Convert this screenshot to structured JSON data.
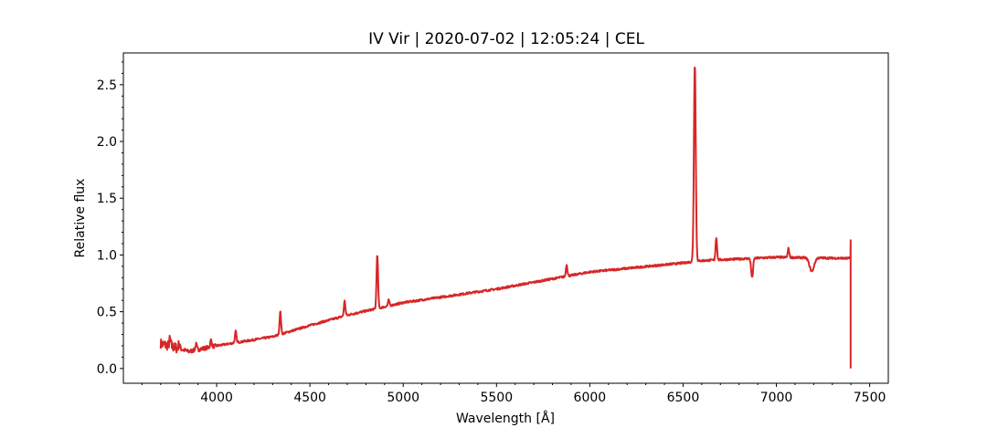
{
  "chart_data": {
    "type": "line",
    "title": "IV Vir | 2020-07-02 | 12:05:24 | CEL",
    "xlabel": "Wavelength [Å]",
    "ylabel": "Relative flux",
    "xlim": [
      3500,
      7600
    ],
    "ylim": [
      -0.13,
      2.78
    ],
    "xticks": [
      4000,
      4500,
      5000,
      5500,
      6000,
      6500,
      7000,
      7500
    ],
    "yticks": [
      0.0,
      0.5,
      1.0,
      1.5,
      2.0,
      2.5
    ],
    "xtick_labels": [
      "4000",
      "4500",
      "5000",
      "5500",
      "6000",
      "6500",
      "7000",
      "7500"
    ],
    "ytick_labels": [
      "0.0",
      "0.5",
      "1.0",
      "1.5",
      "2.0",
      "2.5"
    ],
    "grid": false,
    "series": [
      {
        "color": "#d62728",
        "continuum": [
          [
            3700,
            0.22
          ],
          [
            3850,
            0.15
          ],
          [
            4000,
            0.2
          ],
          [
            4300,
            0.28
          ],
          [
            4500,
            0.38
          ],
          [
            4700,
            0.47
          ],
          [
            5000,
            0.58
          ],
          [
            5500,
            0.7
          ],
          [
            6000,
            0.85
          ],
          [
            6500,
            0.93
          ],
          [
            6600,
            0.95
          ],
          [
            7000,
            0.98
          ],
          [
            7400,
            0.97
          ]
        ],
        "lines": [
          {
            "center": 3750,
            "amp": 0.06,
            "width": 4
          },
          {
            "center": 3800,
            "amp": 0.05,
            "width": 4
          },
          {
            "center": 3890,
            "amp": 0.05,
            "width": 4
          },
          {
            "center": 3970,
            "amp": 0.06,
            "width": 4
          },
          {
            "center": 4102,
            "amp": 0.1,
            "width": 4
          },
          {
            "center": 4341,
            "amp": 0.2,
            "width": 4
          },
          {
            "center": 4686,
            "amp": 0.13,
            "width": 4
          },
          {
            "center": 4861,
            "amp": 0.47,
            "width": 4
          },
          {
            "center": 4922,
            "amp": 0.05,
            "width": 4
          },
          {
            "center": 5876,
            "amp": 0.1,
            "width": 4
          },
          {
            "center": 6563,
            "amp": 1.75,
            "width": 5
          },
          {
            "center": 6678,
            "amp": 0.2,
            "width": 4
          },
          {
            "center": 6870,
            "amp": -0.17,
            "width": 5
          },
          {
            "center": 7065,
            "amp": 0.08,
            "width": 4
          },
          {
            "center": 7190,
            "amp": -0.12,
            "width": 12
          }
        ],
        "end_spike": {
          "x": 7398,
          "top": 1.13,
          "bottom": 0.0
        }
      }
    ]
  }
}
